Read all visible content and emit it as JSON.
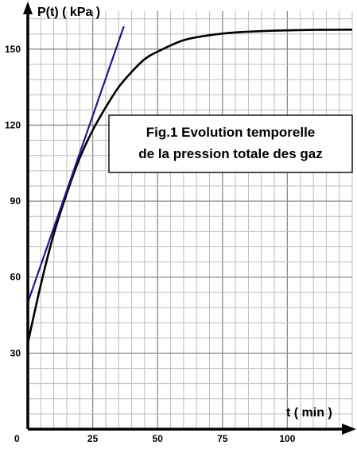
{
  "chart_data": {
    "type": "line",
    "title_lines": [
      "Fig.1  Evolution temporelle",
      "de la pression totale des gaz"
    ],
    "xlabel": "t ( min )",
    "ylabel": "P(t)  ( kPa )",
    "x_origin_label": "0",
    "xlim": [
      0,
      125
    ],
    "ylim": [
      0,
      165
    ],
    "x_ticks": [
      25,
      50,
      75,
      100
    ],
    "y_ticks": [
      30,
      60,
      90,
      120,
      150
    ],
    "x_minor_step": 5,
    "y_minor_step": 6,
    "grid": true,
    "series": [
      {
        "kind": "curve",
        "color": "#000000",
        "x": [
          0,
          5,
          10,
          15,
          20,
          25,
          30,
          35,
          40,
          45,
          50,
          60,
          70,
          80,
          90,
          100,
          110,
          125
        ],
        "y": [
          34,
          57,
          77,
          93,
          107,
          118,
          127,
          135,
          141,
          146,
          149,
          153.5,
          155.5,
          156.6,
          157.1,
          157.4,
          157.6,
          157.7
        ]
      },
      {
        "kind": "tangent",
        "color": "#1c1c8c",
        "x": [
          0,
          37
        ],
        "y": [
          50,
          159
        ]
      }
    ]
  }
}
